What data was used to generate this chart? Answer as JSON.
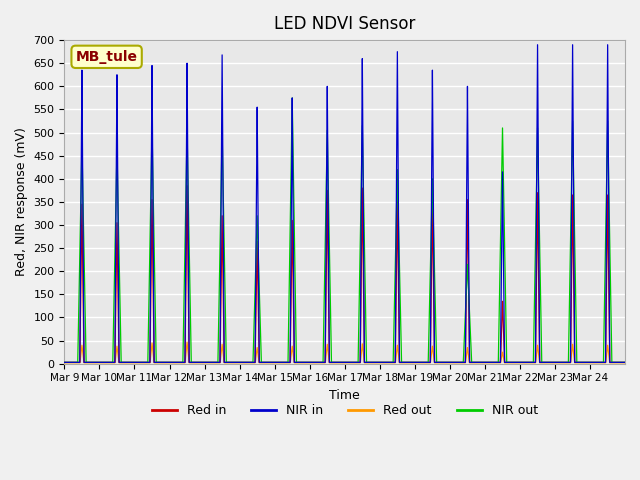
{
  "title": "LED NDVI Sensor",
  "xlabel": "Time",
  "ylabel": "Red, NIR response (mV)",
  "ylim": [
    0,
    700
  ],
  "annotation": "MB_tule",
  "x_tick_labels": [
    "Mar 9",
    "Mar 10",
    "Mar 11",
    "Mar 12",
    "Mar 13",
    "Mar 14",
    "Mar 15",
    "Mar 16",
    "Mar 17",
    "Mar 18",
    "Mar 19",
    "Mar 20",
    "Mar 21",
    "Mar 22",
    "Mar 23",
    "Mar 24"
  ],
  "legend": [
    {
      "label": "Red in",
      "color": "#cc0000"
    },
    {
      "label": "NIR in",
      "color": "#0000cc"
    },
    {
      "label": "Red out",
      "color": "#ff9900"
    },
    {
      "label": "NIR out",
      "color": "#00cc00"
    }
  ],
  "background_color": "#e8e8e8",
  "grid_color": "#ffffff",
  "red_in_peaks": [
    345,
    305,
    355,
    385,
    320,
    265,
    310,
    375,
    380,
    355,
    350,
    355,
    135,
    370,
    365,
    365
  ],
  "nir_in_peaks": [
    635,
    625,
    645,
    650,
    668,
    555,
    575,
    600,
    660,
    675,
    635,
    600,
    415,
    690,
    690,
    690
  ],
  "red_out_peaks": [
    40,
    38,
    45,
    47,
    42,
    35,
    38,
    42,
    43,
    40,
    38,
    35,
    25,
    40,
    42,
    40
  ],
  "nir_out_peaks": [
    475,
    465,
    510,
    505,
    503,
    320,
    575,
    505,
    515,
    420,
    400,
    215,
    510,
    510,
    525,
    525
  ],
  "figsize": [
    6.4,
    4.8
  ],
  "dpi": 100
}
